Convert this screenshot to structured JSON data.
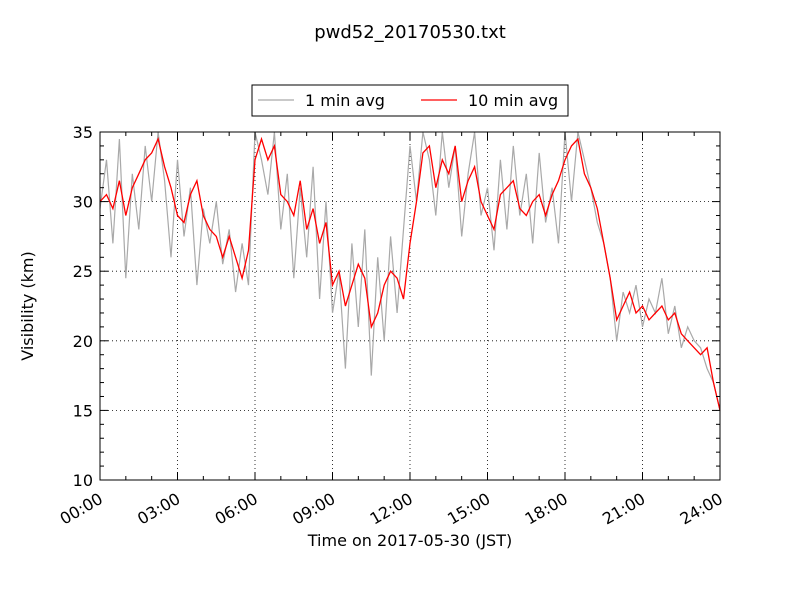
{
  "chart_data": {
    "type": "line",
    "title": "pwd52_20170530.txt",
    "xlabel": "Time on 2017-05-30 (JST)",
    "ylabel": "Visibility (km)",
    "xlim": [
      "00:00",
      "24:00"
    ],
    "ylim": [
      10,
      35
    ],
    "x_ticks": [
      "00:00",
      "03:00",
      "06:00",
      "09:00",
      "12:00",
      "15:00",
      "18:00",
      "21:00",
      "24:00"
    ],
    "y_ticks": [
      "10",
      "15",
      "20",
      "25",
      "30",
      "35"
    ],
    "grid": true,
    "legend_placement": "top-center",
    "series": [
      {
        "name": "1 min avg",
        "color": "#a9a9a9",
        "x_hours": [
          0.0,
          0.25,
          0.5,
          0.75,
          1.0,
          1.25,
          1.5,
          1.75,
          2.0,
          2.25,
          2.5,
          2.75,
          3.0,
          3.25,
          3.5,
          3.75,
          4.0,
          4.25,
          4.5,
          4.75,
          5.0,
          5.25,
          5.5,
          5.75,
          6.0,
          6.25,
          6.5,
          6.75,
          7.0,
          7.25,
          7.5,
          7.75,
          8.0,
          8.25,
          8.5,
          8.75,
          9.0,
          9.25,
          9.5,
          9.75,
          10.0,
          10.25,
          10.5,
          10.75,
          11.0,
          11.25,
          11.5,
          11.75,
          12.0,
          12.25,
          12.5,
          12.75,
          13.0,
          13.25,
          13.5,
          13.75,
          14.0,
          14.25,
          14.5,
          14.75,
          15.0,
          15.25,
          15.5,
          15.75,
          16.0,
          16.25,
          16.5,
          16.75,
          17.0,
          17.25,
          17.5,
          17.75,
          18.0,
          18.25,
          18.5,
          18.75,
          19.0,
          19.25,
          19.5,
          19.75,
          20.0,
          20.25,
          20.5,
          20.75,
          21.0,
          21.25,
          21.5,
          21.75,
          22.0,
          22.25,
          22.5,
          22.75,
          23.0,
          23.25,
          23.5,
          23.75,
          24.0
        ],
        "values": [
          29.5,
          33.0,
          27.0,
          34.5,
          24.5,
          32.0,
          28.0,
          34.0,
          30.0,
          35.0,
          31.5,
          26.0,
          33.0,
          27.5,
          31.0,
          24.0,
          29.5,
          27.0,
          30.0,
          25.5,
          28.0,
          23.5,
          27.0,
          24.0,
          35.0,
          33.0,
          30.5,
          35.0,
          28.0,
          32.0,
          24.5,
          31.0,
          26.0,
          32.5,
          23.0,
          30.0,
          22.0,
          25.0,
          18.0,
          27.0,
          21.0,
          28.0,
          17.5,
          26.0,
          20.0,
          27.5,
          22.0,
          28.0,
          34.0,
          30.0,
          35.0,
          33.0,
          29.0,
          35.0,
          31.0,
          34.0,
          27.5,
          32.0,
          35.0,
          29.0,
          31.0,
          26.5,
          33.0,
          28.0,
          34.0,
          29.0,
          32.0,
          27.0,
          33.5,
          28.5,
          31.0,
          27.0,
          35.0,
          30.0,
          35.0,
          33.0,
          31.0,
          28.5,
          27.0,
          24.5,
          20.0,
          23.5,
          22.0,
          24.0,
          21.0,
          23.0,
          22.0,
          24.5,
          20.5,
          22.5,
          19.5,
          21.0,
          20.0,
          19.5,
          18.0,
          17.0,
          15.0
        ]
      },
      {
        "name": "10 min avg",
        "color": "#ff0000",
        "x_hours": [
          0.0,
          0.25,
          0.5,
          0.75,
          1.0,
          1.25,
          1.5,
          1.75,
          2.0,
          2.25,
          2.5,
          2.75,
          3.0,
          3.25,
          3.5,
          3.75,
          4.0,
          4.25,
          4.5,
          4.75,
          5.0,
          5.25,
          5.5,
          5.75,
          6.0,
          6.25,
          6.5,
          6.75,
          7.0,
          7.25,
          7.5,
          7.75,
          8.0,
          8.25,
          8.5,
          8.75,
          9.0,
          9.25,
          9.5,
          9.75,
          10.0,
          10.25,
          10.5,
          10.75,
          11.0,
          11.25,
          11.5,
          11.75,
          12.0,
          12.25,
          12.5,
          12.75,
          13.0,
          13.25,
          13.5,
          13.75,
          14.0,
          14.25,
          14.5,
          14.75,
          15.0,
          15.25,
          15.5,
          15.75,
          16.0,
          16.25,
          16.5,
          16.75,
          17.0,
          17.25,
          17.5,
          17.75,
          18.0,
          18.25,
          18.5,
          18.75,
          19.0,
          19.25,
          19.5,
          19.75,
          20.0,
          20.25,
          20.5,
          20.75,
          21.0,
          21.25,
          21.5,
          21.75,
          22.0,
          22.25,
          22.5,
          22.75,
          23.0,
          23.25,
          23.5,
          23.75,
          24.0
        ],
        "values": [
          30.0,
          30.5,
          29.5,
          31.5,
          29.0,
          31.0,
          32.0,
          33.0,
          33.5,
          34.5,
          32.5,
          31.0,
          29.0,
          28.5,
          30.5,
          31.5,
          29.0,
          28.0,
          27.5,
          26.0,
          27.5,
          26.0,
          24.5,
          26.5,
          33.0,
          34.5,
          33.0,
          34.0,
          30.5,
          30.0,
          29.0,
          31.5,
          28.0,
          29.5,
          27.0,
          28.5,
          24.0,
          25.0,
          22.5,
          24.0,
          25.5,
          24.5,
          21.0,
          22.0,
          24.0,
          25.0,
          24.5,
          23.0,
          27.0,
          30.0,
          33.5,
          34.0,
          31.0,
          33.0,
          32.0,
          34.0,
          30.0,
          31.5,
          32.5,
          30.0,
          29.0,
          28.0,
          30.5,
          31.0,
          31.5,
          29.5,
          29.0,
          30.0,
          30.5,
          29.0,
          30.5,
          31.5,
          33.0,
          34.0,
          34.5,
          32.0,
          31.0,
          29.5,
          27.0,
          24.5,
          21.5,
          22.5,
          23.5,
          22.0,
          22.5,
          21.5,
          22.0,
          22.5,
          21.5,
          22.0,
          20.5,
          20.0,
          19.5,
          19.0,
          19.5,
          17.0,
          15.0
        ]
      }
    ]
  }
}
